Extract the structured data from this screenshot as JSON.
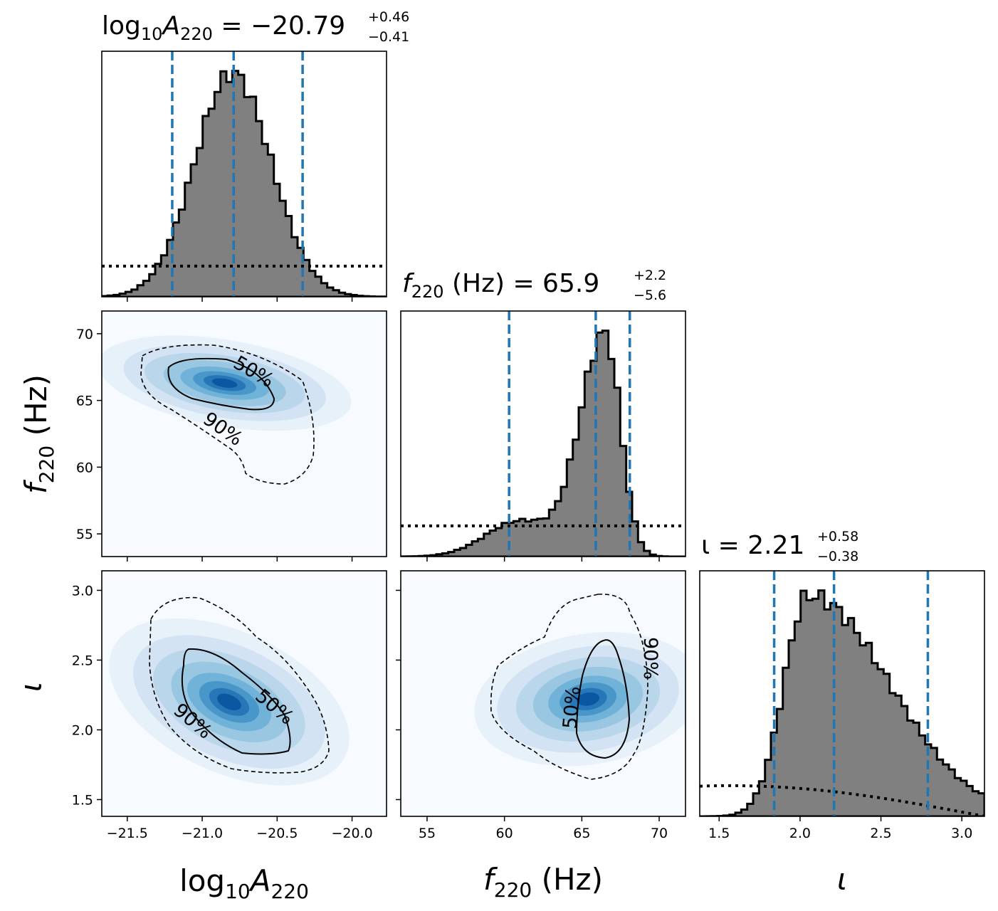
{
  "chart_data": {
    "type": "corner",
    "colors": {
      "histogram_fill": "#808080",
      "histogram_edge": "#000000",
      "quantile_line": "#1f77b4",
      "density_colormap": "Blues"
    },
    "parameters": [
      {
        "key": "logA",
        "label_main": "log",
        "label_sub1": "10",
        "label_var": "A",
        "label_sub2": "220",
        "title_lhs": "= −20.79",
        "title_plus": "+0.46",
        "title_minus": "−0.41",
        "median": -20.79,
        "quantiles": [
          -21.2,
          -20.79,
          -20.33
        ],
        "range": [
          -21.67,
          -19.77
        ],
        "ticks": [
          -21.5,
          -21.0,
          -20.5,
          -20.0
        ],
        "tick_labels": [
          "−21.5",
          "−21.0",
          "−20.5",
          "−20.0"
        ],
        "hist_peak_x": -20.8,
        "hist_sigma_left": 0.25,
        "hist_sigma_right": 0.26,
        "prior": "flat"
      },
      {
        "key": "f220",
        "label_var": "f",
        "label_sub": "220",
        "label_unit": "(Hz)",
        "title_lhs": "(Hz) = 65.9",
        "title_plus": "+2.2",
        "title_minus": "−5.6",
        "median": 65.9,
        "quantiles": [
          60.3,
          65.9,
          68.1
        ],
        "range": [
          53.3,
          71.7
        ],
        "ticks": [
          55,
          60,
          65,
          70
        ],
        "tick_labels": [
          "55",
          "60",
          "65",
          "70"
        ],
        "hist_peak_x": 66.5,
        "hist_sigma_left": 1.6,
        "hist_sigma_right": 1.0,
        "prior": "flat"
      },
      {
        "key": "iota",
        "label_var": "ι",
        "title_lhs": "ι = 2.21",
        "title_plus": "+0.58",
        "title_minus": "−0.38",
        "median": 2.21,
        "quantiles": [
          1.84,
          2.21,
          2.79
        ],
        "range": [
          1.38,
          3.14
        ],
        "ticks": [
          1.5,
          2.0,
          2.5,
          3.0
        ],
        "tick_labels": [
          "1.5",
          "2.0",
          "2.5",
          "3.0"
        ],
        "hist_peak_x": 2.05,
        "hist_sigma_left": 0.15,
        "hist_sigma_right": 0.5,
        "prior": "sine"
      }
    ],
    "y_ticks_f220": {
      "ticks": [
        55,
        60,
        65,
        70
      ],
      "labels": [
        "55",
        "60",
        "65",
        "70"
      ]
    },
    "y_ticks_iota": {
      "ticks": [
        1.5,
        2.0,
        2.5,
        3.0
      ],
      "labels": [
        "1.5",
        "2.0",
        "2.5",
        "3.0"
      ]
    },
    "contour_levels": [
      "50%",
      "90%"
    ],
    "joint_densities": [
      {
        "pair": "logA-f220",
        "mean_x": -20.85,
        "mean_y": 66.3,
        "sigma_x": 0.3,
        "sigma_y": 1.8,
        "correlation": -0.35
      },
      {
        "pair": "logA-iota",
        "mean_x": -20.82,
        "mean_y": 2.2,
        "sigma_x": 0.3,
        "sigma_y": 0.28,
        "correlation": -0.6
      },
      {
        "pair": "f220-iota",
        "mean_x": 65.4,
        "mean_y": 2.22,
        "sigma_x": 2.6,
        "sigma_y": 0.26,
        "correlation": 0.2
      }
    ]
  }
}
